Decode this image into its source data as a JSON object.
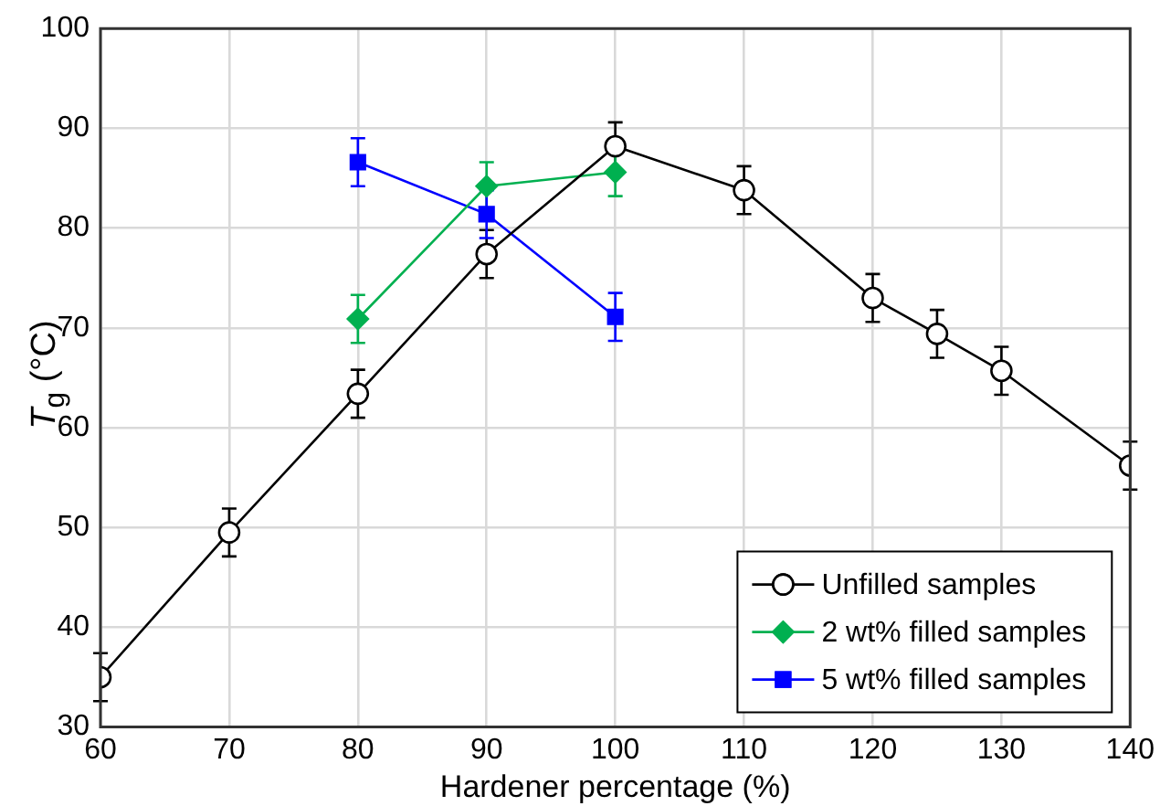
{
  "chart_data": {
    "type": "line",
    "xlabel": "Hardener percentage (%)",
    "ylabel": "T$_{g}$ (°C)",
    "xlim": [
      60,
      140
    ],
    "xticks": [
      60,
      70,
      80,
      90,
      100,
      110,
      120,
      130,
      140
    ],
    "ylim": [
      30,
      100
    ],
    "yticks": [
      30,
      40,
      50,
      60,
      70,
      80,
      90,
      100
    ],
    "grid": true,
    "legend": "bottom right",
    "series": [
      {
        "name": "Unfilled samples",
        "color": "#000000",
        "marker": "circle",
        "x": [
          60,
          70,
          80,
          90,
          100,
          110,
          120,
          125,
          130,
          140
        ],
        "values": [
          35,
          49.5,
          63.4,
          77.4,
          88.2,
          83.8,
          73,
          69.4,
          65.7,
          56.2
        ],
        "errors": [
          2.4,
          2.4,
          2.4,
          2.4,
          2.4,
          2.4,
          2.4,
          2.4,
          2.4,
          2.4
        ]
      },
      {
        "name": "2 wt% filled samples",
        "color": "#00b050",
        "marker": "diamond",
        "x": [
          80,
          90,
          100
        ],
        "values": [
          70.9,
          84.2,
          85.6
        ],
        "errors": [
          2.4,
          2.4,
          2.4
        ]
      },
      {
        "name": "5 wt% filled samples",
        "color": "#0000ff",
        "marker": "square",
        "x": [
          80,
          90,
          100
        ],
        "values": [
          86.6,
          81.4,
          71.1
        ],
        "errors": [
          2.4,
          2.4,
          2.4
        ]
      }
    ]
  }
}
